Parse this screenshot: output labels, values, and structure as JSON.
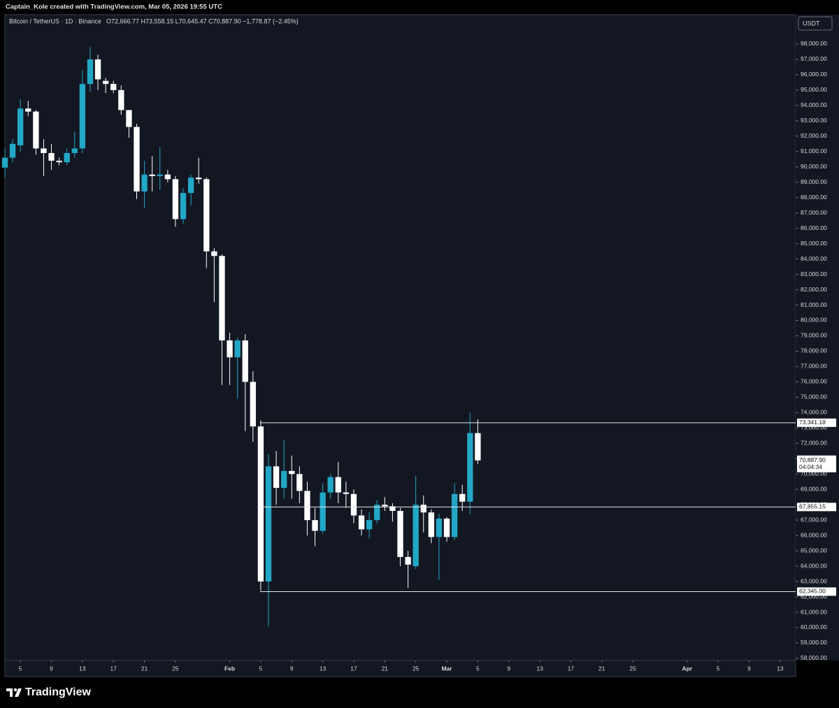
{
  "header": "Captain_Kole created with TradingView.com, Mar 05, 2026 19:55 UTC",
  "watermark": "TradingView",
  "chart_data": {
    "type": "candlestick",
    "symbol": "Bitcoin / TetherUS · 1D · Binance",
    "ohlc_text": "O72,666.77 H73,558.15 L70,645.47 C70,887.90 −1,778.87 (−2.45%)",
    "currency": "USDT",
    "up_color": "#22a7c6",
    "down_color": "#ffffff",
    "x": [
      "2026-01-03",
      "2026-01-04",
      "2026-01-05",
      "2026-01-06",
      "2026-01-07",
      "2026-01-08",
      "2026-01-09",
      "2026-01-10",
      "2026-01-11",
      "2026-01-12",
      "2026-01-13",
      "2026-01-14",
      "2026-01-15",
      "2026-01-16",
      "2026-01-17",
      "2026-01-18",
      "2026-01-19",
      "2026-01-20",
      "2026-01-21",
      "2026-01-22",
      "2026-01-23",
      "2026-01-24",
      "2026-01-25",
      "2026-01-26",
      "2026-01-27",
      "2026-01-28",
      "2026-01-29",
      "2026-01-30",
      "2026-01-31",
      "2026-02-01",
      "2026-02-02",
      "2026-02-03",
      "2026-02-04",
      "2026-02-05",
      "2026-02-06",
      "2026-02-07",
      "2026-02-08",
      "2026-02-09",
      "2026-02-10",
      "2026-02-11",
      "2026-02-12",
      "2026-02-13",
      "2026-02-14",
      "2026-02-15",
      "2026-02-16",
      "2026-02-17",
      "2026-02-18",
      "2026-02-19",
      "2026-02-20",
      "2026-02-21",
      "2026-02-22",
      "2026-02-23",
      "2026-02-24",
      "2026-02-25",
      "2026-02-26",
      "2026-02-27",
      "2026-02-28",
      "2026-03-01",
      "2026-03-02",
      "2026-03-03",
      "2026-03-04",
      "2026-03-05"
    ],
    "open": [
      89950,
      90600,
      91400,
      93800,
      93600,
      91200,
      90900,
      90400,
      90300,
      90900,
      91200,
      95400,
      97000,
      95600,
      95400,
      95000,
      93700,
      92600,
      88400,
      89500,
      89400,
      89500,
      89200,
      86600,
      88300,
      89300,
      89200,
      84500,
      84200,
      78700,
      77600,
      78700,
      76000,
      73100,
      63000,
      70500,
      69100,
      70200,
      70000,
      68900,
      67000,
      66300,
      68800,
      69800,
      68800,
      68700,
      67300,
      66400,
      67000,
      68000,
      67900,
      67600,
      64600,
      64000,
      68000,
      67500,
      65900,
      67100,
      65900,
      68700,
      68200,
      72666.77
    ],
    "high": [
      91200,
      91800,
      94400,
      94300,
      93700,
      91800,
      91500,
      90600,
      91200,
      92300,
      96300,
      97800,
      97300,
      95800,
      95600,
      95300,
      93700,
      92800,
      90400,
      90700,
      91300,
      89800,
      89400,
      88600,
      89500,
      90600,
      89300,
      84700,
      84300,
      79200,
      78900,
      79100,
      76700,
      73500,
      71300,
      71500,
      72200,
      71200,
      70500,
      69500,
      67800,
      69400,
      70000,
      70800,
      69500,
      69000,
      67700,
      67500,
      68300,
      68500,
      68100,
      67800,
      65000,
      69900,
      68600,
      67700,
      67400,
      67200,
      69400,
      69300,
      74000,
      73558.15
    ],
    "low": [
      89300,
      90300,
      91000,
      93300,
      90800,
      89400,
      89800,
      90100,
      90100,
      90600,
      90900,
      94900,
      95000,
      94800,
      94800,
      93400,
      91900,
      87900,
      87300,
      88400,
      88500,
      89000,
      86100,
      86300,
      87500,
      88900,
      83400,
      81200,
      75800,
      75800,
      74900,
      72800,
      72100,
      62400,
      60100,
      68000,
      68400,
      68400,
      68100,
      66000,
      65300,
      66100,
      68400,
      68100,
      67800,
      66800,
      66000,
      65800,
      66800,
      67600,
      66900,
      64000,
      62600,
      63800,
      66200,
      65500,
      63100,
      65600,
      65700,
      67600,
      67400,
      70645.47
    ],
    "close": [
      90600,
      91500,
      93800,
      93600,
      91200,
      90900,
      90400,
      90300,
      90900,
      91200,
      95400,
      97000,
      95700,
      95400,
      95000,
      93700,
      92600,
      88400,
      89500,
      89400,
      89500,
      89200,
      86600,
      88300,
      89300,
      89200,
      84500,
      84200,
      78700,
      77600,
      78700,
      76000,
      73100,
      63000,
      70500,
      69100,
      70200,
      70000,
      68900,
      67000,
      66300,
      68800,
      69800,
      68800,
      68700,
      67300,
      66400,
      67000,
      68000,
      67900,
      67600,
      64600,
      64100,
      68000,
      67500,
      65900,
      67100,
      65900,
      68700,
      68200,
      72666.77,
      70887.9
    ],
    "xlim": [
      "2026-01-03",
      "2026-04-15"
    ],
    "xticks": [
      {
        "value": "2026-01-05",
        "label": "5"
      },
      {
        "value": "2026-01-09",
        "label": "9"
      },
      {
        "value": "2026-01-13",
        "label": "13"
      },
      {
        "value": "2026-01-17",
        "label": "17"
      },
      {
        "value": "2026-01-21",
        "label": "21"
      },
      {
        "value": "2026-01-25",
        "label": "25"
      },
      {
        "value": "2026-02-01",
        "label": "Feb"
      },
      {
        "value": "2026-02-05",
        "label": "5"
      },
      {
        "value": "2026-02-09",
        "label": "9"
      },
      {
        "value": "2026-02-13",
        "label": "13"
      },
      {
        "value": "2026-02-17",
        "label": "17"
      },
      {
        "value": "2026-02-21",
        "label": "21"
      },
      {
        "value": "2026-02-25",
        "label": "25"
      },
      {
        "value": "2026-03-01",
        "label": "Mar"
      },
      {
        "value": "2026-03-05",
        "label": "5"
      },
      {
        "value": "2026-03-09",
        "label": "9"
      },
      {
        "value": "2026-03-13",
        "label": "13"
      },
      {
        "value": "2026-03-17",
        "label": "17"
      },
      {
        "value": "2026-03-21",
        "label": "21"
      },
      {
        "value": "2026-03-25",
        "label": "25"
      },
      {
        "value": "2026-04-01",
        "label": "Apr"
      },
      {
        "value": "2026-04-05",
        "label": "5"
      },
      {
        "value": "2026-04-09",
        "label": "9"
      },
      {
        "value": "2026-04-13",
        "label": "13"
      }
    ],
    "ylim": [
      57860,
      99910
    ],
    "yticks": [
      {
        "value": 98000,
        "label": "98,000.00"
      },
      {
        "value": 97000,
        "label": "97,000.00"
      },
      {
        "value": 96000,
        "label": "96,000.00"
      },
      {
        "value": 95000,
        "label": "95,000.00"
      },
      {
        "value": 94000,
        "label": "94,000.00"
      },
      {
        "value": 93000,
        "label": "93,000.00"
      },
      {
        "value": 92000,
        "label": "92,000.00"
      },
      {
        "value": 91000,
        "label": "91,000.00"
      },
      {
        "value": 90000,
        "label": "90,000.00"
      },
      {
        "value": 89000,
        "label": "89,000.00"
      },
      {
        "value": 88000,
        "label": "88,000.00"
      },
      {
        "value": 87000,
        "label": "87,000.00"
      },
      {
        "value": 86000,
        "label": "86,000.00"
      },
      {
        "value": 85000,
        "label": "85,000.00"
      },
      {
        "value": 84000,
        "label": "84,000.00"
      },
      {
        "value": 83000,
        "label": "83,000.00"
      },
      {
        "value": 82000,
        "label": "82,000.00"
      },
      {
        "value": 81000,
        "label": "81,000.00"
      },
      {
        "value": 80000,
        "label": "80,000.00"
      },
      {
        "value": 79000,
        "label": "79,000.00"
      },
      {
        "value": 78000,
        "label": "78,000.00"
      },
      {
        "value": 77000,
        "label": "77,000.00"
      },
      {
        "value": 76000,
        "label": "76,000.00"
      },
      {
        "value": 75000,
        "label": "75,000.00"
      },
      {
        "value": 74000,
        "label": "74,000.00"
      },
      {
        "value": 73000,
        "label": "73,000.00"
      },
      {
        "value": 72000,
        "label": "72,000.00"
      },
      {
        "value": 71000,
        "label": "71,000.00"
      },
      {
        "value": 70000,
        "label": "70,000.00"
      },
      {
        "value": 69000,
        "label": "69,000.00"
      },
      {
        "value": 68000,
        "label": "68,000.00"
      },
      {
        "value": 67000,
        "label": "67,000.00"
      },
      {
        "value": 66000,
        "label": "66,000.00"
      },
      {
        "value": 65000,
        "label": "65,000.00"
      },
      {
        "value": 64000,
        "label": "64,000.00"
      },
      {
        "value": 63000,
        "label": "63,000.00"
      },
      {
        "value": 62000,
        "label": "62,000.00"
      },
      {
        "value": 61000,
        "label": "61,000.00"
      },
      {
        "value": 60000,
        "label": "60,000.00"
      },
      {
        "value": 59000,
        "label": "59,000.00"
      },
      {
        "value": 58000,
        "label": "58,000.00"
      }
    ],
    "levels": [
      {
        "value": 73341.18,
        "label": "73,341.18"
      },
      {
        "value": 67855.15,
        "label": "67,855.15"
      },
      {
        "value": 62345,
        "label": "62,345.00"
      }
    ],
    "last_price": {
      "value": 70887.9,
      "label": "70,887.90"
    },
    "countdown": "04:04:34"
  }
}
